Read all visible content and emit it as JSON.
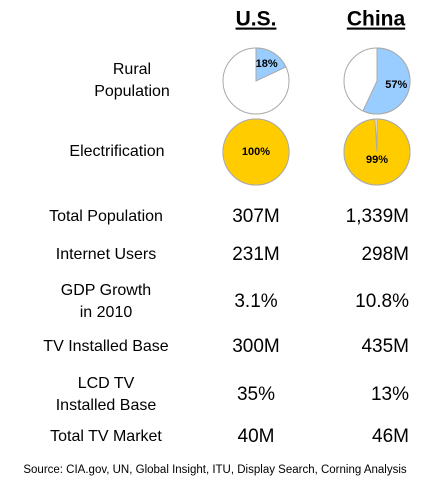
{
  "columns": [
    "U.S.",
    "China"
  ],
  "pies": [
    {
      "label": [
        "Rural",
        "Population"
      ],
      "values": [
        18,
        57
      ],
      "value_labels": [
        "18%",
        "57%"
      ],
      "color": "#99ccff"
    },
    {
      "label": [
        "Electrification"
      ],
      "values": [
        100,
        99
      ],
      "value_labels": [
        "100%",
        "99%"
      ],
      "color": "#ffcc00"
    }
  ],
  "rows": [
    {
      "label": [
        "Total Population"
      ],
      "values": [
        "307M",
        "1,339M"
      ]
    },
    {
      "label": [
        "Internet Users"
      ],
      "values": [
        "231M",
        "298M"
      ]
    },
    {
      "label": [
        "GDP Growth",
        "in 2010"
      ],
      "values": [
        "3.1%",
        "10.8%"
      ]
    },
    {
      "label": [
        "TV Installed Base"
      ],
      "values": [
        "300M",
        "435M"
      ]
    },
    {
      "label": [
        "LCD TV",
        "Installed Base"
      ],
      "values": [
        "35%",
        "13%"
      ]
    },
    {
      "label": [
        "Total TV Market"
      ],
      "values": [
        "40M",
        "46M"
      ]
    }
  ],
  "source": "Source: CIA.gov, UN, Global Insight, ITU, Display Search, Corning Analysis"
}
